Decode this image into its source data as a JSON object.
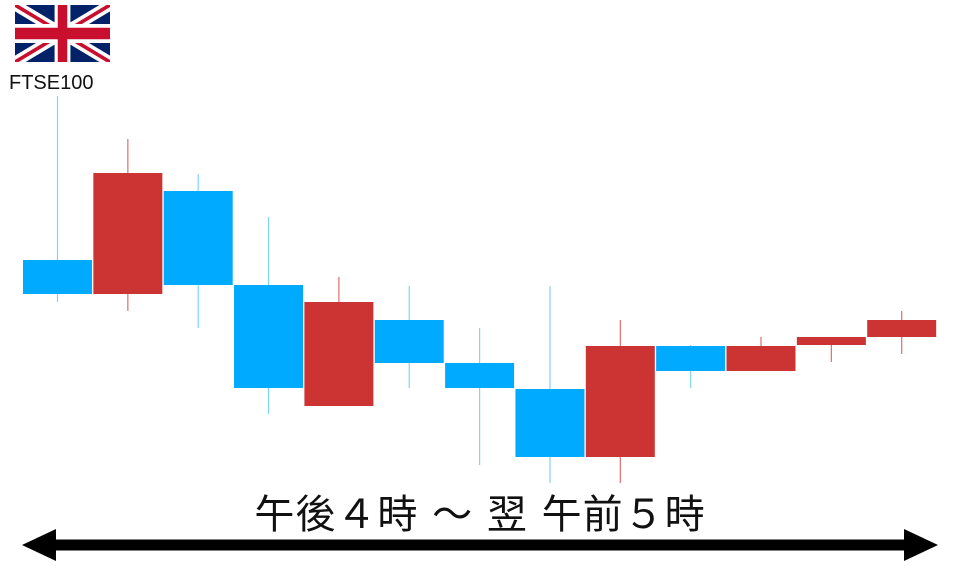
{
  "index_label": "FTSE100",
  "flag_icon": "union-jack-flag",
  "period_label": "午後４時 ～ 翌 午前５時",
  "colors": {
    "up": "#cc3333",
    "down": "#00aaff",
    "arrow": "#000000"
  },
  "chart_data": {
    "type": "candlestick",
    "title": "FTSE100",
    "ylim": [
      0,
      500
    ],
    "grid": false,
    "legend": "none",
    "candles": [
      {
        "open": 240,
        "high": 404,
        "low": 198,
        "close": 206
      },
      {
        "open": 206,
        "high": 361,
        "low": 189,
        "close": 327
      },
      {
        "open": 309,
        "high": 326,
        "low": 172,
        "close": 215
      },
      {
        "open": 215,
        "high": 283,
        "low": 86,
        "close": 112
      },
      {
        "open": 94,
        "high": 223,
        "low": 94,
        "close": 198
      },
      {
        "open": 180,
        "high": 214,
        "low": 112,
        "close": 137
      },
      {
        "open": 137,
        "high": 172,
        "low": 35,
        "close": 112
      },
      {
        "open": 111,
        "high": 214,
        "low": 17,
        "close": 43
      },
      {
        "open": 43,
        "high": 180,
        "low": 17,
        "close": 154
      },
      {
        "open": 154,
        "high": 155,
        "low": 112,
        "close": 129
      },
      {
        "open": 129,
        "high": 163,
        "low": 129,
        "close": 154
      },
      {
        "open": 155,
        "high": 163,
        "low": 138,
        "close": 163
      },
      {
        "open": 163,
        "high": 189,
        "low": 146,
        "close": 180
      }
    ]
  }
}
